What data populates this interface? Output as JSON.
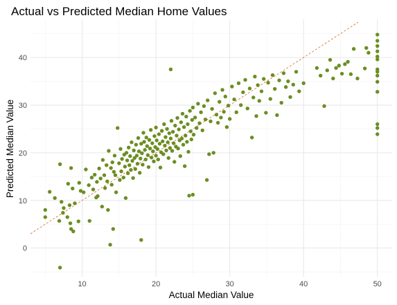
{
  "chart_data": {
    "type": "scatter",
    "title": "Actual vs Predicted Median Home Values",
    "xlabel": "Actual Median Value",
    "ylabel": "Predicted Median Value",
    "xlim": [
      3,
      52
    ],
    "ylim": [
      -6,
      48
    ],
    "x_ticks": [
      10,
      20,
      30,
      40,
      50
    ],
    "y_ticks": [
      0,
      10,
      20,
      30,
      40
    ],
    "grid": true,
    "point_color": "#6B8E23",
    "reference_line": {
      "slope": 1,
      "intercept": 0,
      "style": "dashed",
      "color": "#D2691E"
    },
    "points": [
      [
        5.0,
        8.0
      ],
      [
        5.0,
        6.5
      ],
      [
        5.6,
        11.8
      ],
      [
        6.3,
        10.5
      ],
      [
        6.9,
        5.7
      ],
      [
        7.0,
        17.6
      ],
      [
        7.0,
        -4.1
      ],
      [
        7.2,
        9.7
      ],
      [
        7.4,
        7.4
      ],
      [
        7.5,
        8.4
      ],
      [
        8.0,
        6.5
      ],
      [
        8.1,
        13.5
      ],
      [
        8.3,
        9.0
      ],
      [
        8.4,
        5.2
      ],
      [
        8.5,
        16.8
      ],
      [
        8.5,
        4.0
      ],
      [
        8.7,
        12.5
      ],
      [
        8.8,
        3.5
      ],
      [
        9.0,
        9.4
      ],
      [
        9.5,
        5.6
      ],
      [
        9.6,
        13.7
      ],
      [
        9.8,
        12.0
      ],
      [
        10.2,
        11.7
      ],
      [
        10.5,
        16.5
      ],
      [
        10.9,
        13.2
      ],
      [
        11.0,
        5.7
      ],
      [
        11.3,
        14.8
      ],
      [
        11.5,
        12.3
      ],
      [
        11.7,
        15.4
      ],
      [
        11.9,
        10.6
      ],
      [
        12.0,
        13.9
      ],
      [
        12.1,
        10.9
      ],
      [
        12.3,
        16.7
      ],
      [
        12.5,
        14.6
      ],
      [
        12.7,
        8.7
      ],
      [
        12.8,
        18.5
      ],
      [
        13.0,
        15.3
      ],
      [
        13.1,
        12.6
      ],
      [
        13.3,
        17.4
      ],
      [
        13.4,
        14.0
      ],
      [
        13.5,
        8.0
      ],
      [
        13.6,
        20.4
      ],
      [
        13.8,
        0.7
      ],
      [
        13.9,
        16.8
      ],
      [
        14.0,
        13.3
      ],
      [
        14.1,
        18.0
      ],
      [
        14.2,
        4.0
      ],
      [
        14.3,
        16.0
      ],
      [
        14.4,
        19.4
      ],
      [
        14.5,
        15.3
      ],
      [
        14.6,
        11.7
      ],
      [
        14.8,
        25.2
      ],
      [
        15.0,
        17.8
      ],
      [
        15.1,
        14.3
      ],
      [
        15.2,
        20.8
      ],
      [
        15.3,
        16.1
      ],
      [
        15.4,
        18.7
      ],
      [
        15.6,
        14.8
      ],
      [
        15.7,
        19.6
      ],
      [
        15.8,
        17.1
      ],
      [
        15.9,
        10.5
      ],
      [
        16.0,
        20.0
      ],
      [
        16.1,
        18.4
      ],
      [
        16.2,
        15.7
      ],
      [
        16.3,
        21.1
      ],
      [
        16.4,
        17.4
      ],
      [
        16.5,
        19.3
      ],
      [
        16.6,
        16.4
      ],
      [
        16.7,
        22.2
      ],
      [
        16.8,
        18.3
      ],
      [
        16.9,
        14.7
      ],
      [
        17.0,
        20.5
      ],
      [
        17.1,
        18.9
      ],
      [
        17.2,
        16.6
      ],
      [
        17.3,
        21.7
      ],
      [
        17.4,
        19.4
      ],
      [
        17.5,
        17.7
      ],
      [
        17.6,
        23.1
      ],
      [
        17.7,
        20.3
      ],
      [
        17.8,
        15.8
      ],
      [
        17.9,
        18.8
      ],
      [
        18.0,
        21.9
      ],
      [
        18.0,
        1.7
      ],
      [
        18.1,
        19.9
      ],
      [
        18.2,
        17.5
      ],
      [
        18.3,
        24.2
      ],
      [
        18.4,
        22.3
      ],
      [
        18.5,
        20.6
      ],
      [
        18.6,
        18.6
      ],
      [
        18.7,
        23.2
      ],
      [
        18.8,
        21.4
      ],
      [
        18.9,
        19.5
      ],
      [
        19.0,
        17.0
      ],
      [
        19.1,
        22.7
      ],
      [
        19.2,
        20.9
      ],
      [
        19.3,
        24.8
      ],
      [
        19.4,
        19.0
      ],
      [
        19.5,
        22.0
      ],
      [
        19.6,
        20.3
      ],
      [
        19.7,
        18.2
      ],
      [
        19.8,
        23.5
      ],
      [
        19.9,
        21.2
      ],
      [
        20.0,
        19.4
      ],
      [
        20.0,
        25.3
      ],
      [
        20.1,
        22.6
      ],
      [
        20.2,
        20.8
      ],
      [
        20.3,
        18.6
      ],
      [
        20.4,
        23.9
      ],
      [
        20.5,
        21.9
      ],
      [
        20.6,
        16.9
      ],
      [
        20.7,
        20.1
      ],
      [
        20.8,
        24.6
      ],
      [
        20.9,
        22.4
      ],
      [
        21.0,
        19.7
      ],
      [
        21.1,
        26.0
      ],
      [
        21.2,
        21.5
      ],
      [
        21.3,
        23.3
      ],
      [
        21.4,
        20.5
      ],
      [
        21.5,
        25.0
      ],
      [
        21.6,
        22.2
      ],
      [
        21.7,
        18.9
      ],
      [
        21.8,
        24.1
      ],
      [
        21.9,
        21.0
      ],
      [
        22.0,
        37.5
      ],
      [
        22.0,
        23.0
      ],
      [
        22.1,
        26.7
      ],
      [
        22.2,
        20.4
      ],
      [
        22.3,
        24.4
      ],
      [
        22.4,
        22.0
      ],
      [
        22.5,
        18.1
      ],
      [
        22.6,
        25.7
      ],
      [
        22.7,
        21.3
      ],
      [
        22.8,
        23.6
      ],
      [
        22.9,
        27.3
      ],
      [
        23.0,
        20.9
      ],
      [
        23.1,
        24.9
      ],
      [
        23.2,
        22.6
      ],
      [
        23.3,
        19.3
      ],
      [
        23.4,
        26.4
      ],
      [
        23.5,
        23.0
      ],
      [
        23.6,
        28.2
      ],
      [
        23.7,
        21.7
      ],
      [
        23.8,
        25.4
      ],
      [
        23.9,
        17.2
      ],
      [
        24.0,
        23.6
      ],
      [
        24.1,
        27.6
      ],
      [
        24.2,
        22.3
      ],
      [
        24.3,
        26.0
      ],
      [
        24.4,
        20.2
      ],
      [
        24.5,
        11.0
      ],
      [
        24.6,
        28.8
      ],
      [
        24.7,
        24.5
      ],
      [
        24.8,
        22.8
      ],
      [
        24.9,
        26.9
      ],
      [
        25.0,
        11.2
      ],
      [
        25.0,
        29.5
      ],
      [
        25.1,
        23.8
      ],
      [
        25.3,
        27.4
      ],
      [
        25.5,
        25.2
      ],
      [
        25.7,
        30.3
      ],
      [
        25.9,
        26.2
      ],
      [
        26.1,
        28.5
      ],
      [
        26.3,
        24.7
      ],
      [
        26.5,
        29.8
      ],
      [
        26.7,
        27.0
      ],
      [
        26.9,
        14.3
      ],
      [
        27.0,
        31.0
      ],
      [
        27.2,
        19.7
      ],
      [
        27.4,
        26.6
      ],
      [
        27.6,
        29.2
      ],
      [
        27.8,
        20.0
      ],
      [
        28.0,
        32.5
      ],
      [
        28.2,
        28.0
      ],
      [
        28.4,
        26.3
      ],
      [
        28.6,
        30.7
      ],
      [
        28.8,
        27.4
      ],
      [
        29.0,
        33.2
      ],
      [
        29.2,
        28.6
      ],
      [
        29.4,
        31.8
      ],
      [
        29.6,
        25.4
      ],
      [
        29.8,
        29.9
      ],
      [
        30.0,
        27.1
      ],
      [
        30.3,
        33.9
      ],
      [
        30.6,
        31.2
      ],
      [
        30.9,
        28.5
      ],
      [
        31.2,
        34.6
      ],
      [
        31.5,
        30.0
      ],
      [
        31.8,
        32.7
      ],
      [
        32.1,
        35.3
      ],
      [
        32.4,
        29.3
      ],
      [
        32.7,
        33.5
      ],
      [
        33.0,
        23.2
      ],
      [
        33.2,
        31.6
      ],
      [
        33.4,
        36.0
      ],
      [
        33.6,
        27.7
      ],
      [
        33.8,
        34.2
      ],
      [
        34.0,
        30.9
      ],
      [
        34.3,
        32.9
      ],
      [
        34.6,
        35.5
      ],
      [
        34.9,
        28.4
      ],
      [
        35.2,
        34.7
      ],
      [
        35.5,
        31.3
      ],
      [
        35.8,
        36.3
      ],
      [
        36.1,
        33.4
      ],
      [
        36.4,
        27.9
      ],
      [
        36.7,
        35.2
      ],
      [
        37.0,
        30.5
      ],
      [
        37.3,
        36.7
      ],
      [
        37.6,
        33.8
      ],
      [
        37.9,
        35.0
      ],
      [
        38.2,
        31.7
      ],
      [
        38.6,
        34.3
      ],
      [
        39.0,
        37.0
      ],
      [
        39.4,
        32.9
      ],
      [
        40.0,
        34.6
      ],
      [
        41.8,
        37.8
      ],
      [
        42.3,
        36.2
      ],
      [
        42.8,
        29.8
      ],
      [
        43.2,
        37.3
      ],
      [
        43.6,
        39.5
      ],
      [
        44.0,
        35.6
      ],
      [
        44.4,
        37.8
      ],
      [
        44.8,
        38.3
      ],
      [
        45.2,
        36.6
      ],
      [
        45.6,
        38.6
      ],
      [
        46.0,
        39.1
      ],
      [
        46.4,
        36.5
      ],
      [
        46.8,
        41.8
      ],
      [
        47.3,
        35.6
      ],
      [
        48.3,
        37.7
      ],
      [
        48.5,
        42.0
      ],
      [
        48.8,
        41.0
      ],
      [
        50.0,
        44.8
      ],
      [
        50.0,
        43.5
      ],
      [
        50.0,
        42.4
      ],
      [
        50.0,
        41.3
      ],
      [
        50.0,
        40.2
      ],
      [
        50.0,
        39.6
      ],
      [
        50.0,
        37.5
      ],
      [
        50.0,
        37.0
      ],
      [
        50.0,
        36.2
      ],
      [
        50.0,
        34.9
      ],
      [
        50.0,
        32.8
      ],
      [
        50.0,
        26.0
      ],
      [
        50.0,
        25.2
      ],
      [
        50.0,
        23.9
      ]
    ]
  }
}
